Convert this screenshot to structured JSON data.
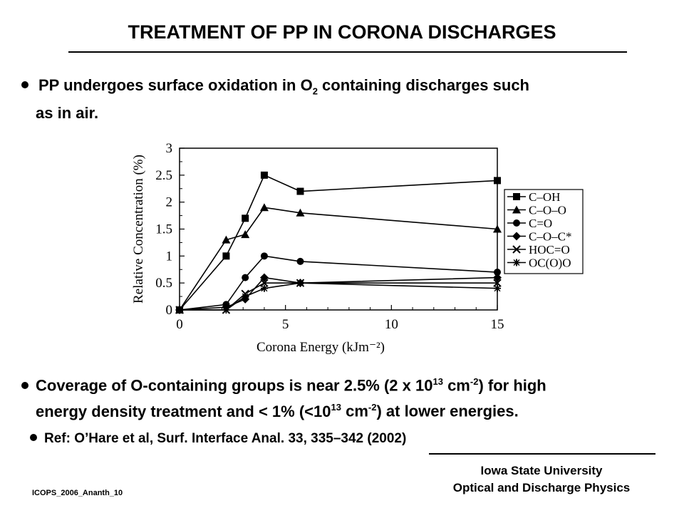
{
  "slide": {
    "title": "TREATMENT OF PP IN CORONA DISCHARGES",
    "bullet1": {
      "part1": "PP undergoes surface oxidation in O",
      "sub": "2",
      "part2": " containing discharges such",
      "line2": "as in air."
    },
    "bullet2": {
      "part1": "Coverage of O-containing groups is near 2.5% (2 x 10",
      "sup1": "13",
      "part2": " cm",
      "sup2": "-2",
      "part3": ") for high",
      "line2_part1": "energy density treatment and < 1% (<10",
      "line2_sup1": "13",
      "line2_part2": " cm",
      "line2_sup2": "-2",
      "line2_part3": ") at lower energies."
    },
    "ref": "Ref: O’Hare et al, Surf. Interface Anal. 33, 335–342 (2002)",
    "footer": {
      "line1": "Iowa State University",
      "line2": "Optical and Discharge Physics"
    },
    "code": "ICOPS_2006_Ananth_10"
  },
  "chart_data": {
    "type": "line",
    "xlabel": "Corona Energy (kJm⁻²)",
    "ylabel": "Relative Concentration (%)",
    "xlim": [
      0,
      15
    ],
    "ylim": [
      0,
      3
    ],
    "xticks": [
      0,
      5,
      10,
      15
    ],
    "yticks": [
      0,
      0.5,
      1,
      1.5,
      2,
      2.5,
      3
    ],
    "ytick_labels": [
      "0",
      "0.5",
      "1",
      "1.5",
      "2",
      "2.5",
      "3"
    ],
    "legend_position": "right",
    "series": [
      {
        "name": "C–OH",
        "marker": "square",
        "x": [
          0,
          2.2,
          3.1,
          4.0,
          5.7,
          15
        ],
        "y": [
          0,
          1.0,
          1.7,
          2.5,
          2.2,
          2.4
        ]
      },
      {
        "name": "C–O–O",
        "marker": "triangle",
        "x": [
          0,
          2.2,
          3.1,
          4.0,
          5.7,
          15
        ],
        "y": [
          0,
          1.3,
          1.4,
          1.9,
          1.8,
          1.5
        ]
      },
      {
        "name": "C=O",
        "marker": "circle",
        "x": [
          0,
          2.2,
          3.1,
          4.0,
          5.7,
          15
        ],
        "y": [
          0,
          0.1,
          0.6,
          1.0,
          0.9,
          0.7
        ]
      },
      {
        "name": "C–O–C*",
        "marker": "diamond",
        "x": [
          0,
          2.2,
          3.1,
          4.0,
          5.7,
          15
        ],
        "y": [
          0,
          0.05,
          0.2,
          0.6,
          0.5,
          0.6
        ]
      },
      {
        "name": "HOC=O",
        "marker": "x",
        "x": [
          0,
          2.2,
          3.1,
          4.0,
          5.7,
          15
        ],
        "y": [
          0,
          0.0,
          0.3,
          0.5,
          0.5,
          0.5
        ]
      },
      {
        "name": "OC(O)O",
        "marker": "star",
        "x": [
          0,
          2.2,
          3.1,
          4.0,
          5.7,
          15
        ],
        "y": [
          0,
          0.0,
          0.25,
          0.4,
          0.5,
          0.4
        ]
      }
    ]
  }
}
